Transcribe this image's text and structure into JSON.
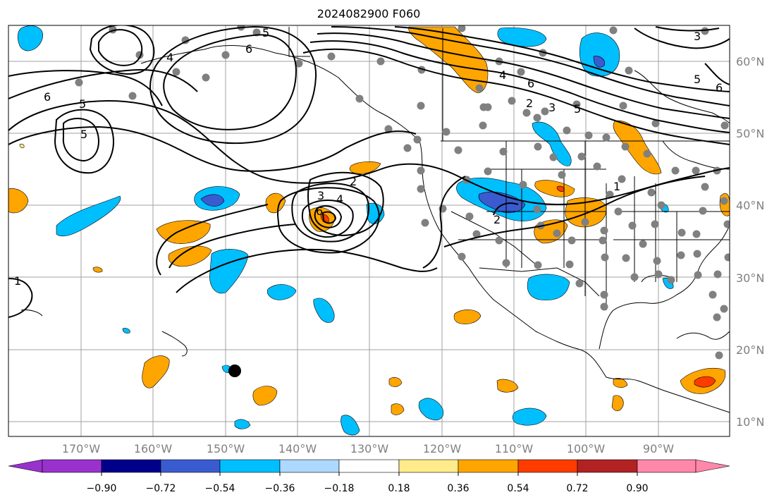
{
  "title": "2024082900 F060",
  "lat_labels": [
    "60°N",
    "50°N",
    "40°N",
    "30°N",
    "20°N",
    "10°N"
  ],
  "lon_labels": [
    "170°W",
    "160°W",
    "150°W",
    "140°W",
    "130°W",
    "120°W",
    "110°W",
    "100°W",
    "90°W"
  ],
  "colorbar": {
    "ticks": [
      "−0.90",
      "−0.72",
      "−0.54",
      "−0.36",
      "−0.18",
      "0.18",
      "0.36",
      "0.54",
      "0.72",
      "0.90"
    ],
    "colors": [
      "#9932cc",
      "#00008b",
      "#3a5bd0",
      "#00bfff",
      "#add8ff",
      "#ffffff",
      "#ffeb8a",
      "#ffa500",
      "#ff3c00",
      "#b22222",
      "#ff88aa"
    ]
  },
  "contour_labels": [
    "5",
    "6",
    "5",
    "6",
    "5",
    "4",
    "6",
    "2",
    "3",
    "4",
    "2",
    "1",
    "1",
    "2",
    "3",
    "4",
    "5",
    "6",
    "3",
    "5",
    "6"
  ],
  "colors": {
    "contour": "#000000",
    "station": "#808080",
    "marker": "#000000",
    "grid": "#a0a0a0",
    "ocean_bg": "#ffffff"
  }
}
